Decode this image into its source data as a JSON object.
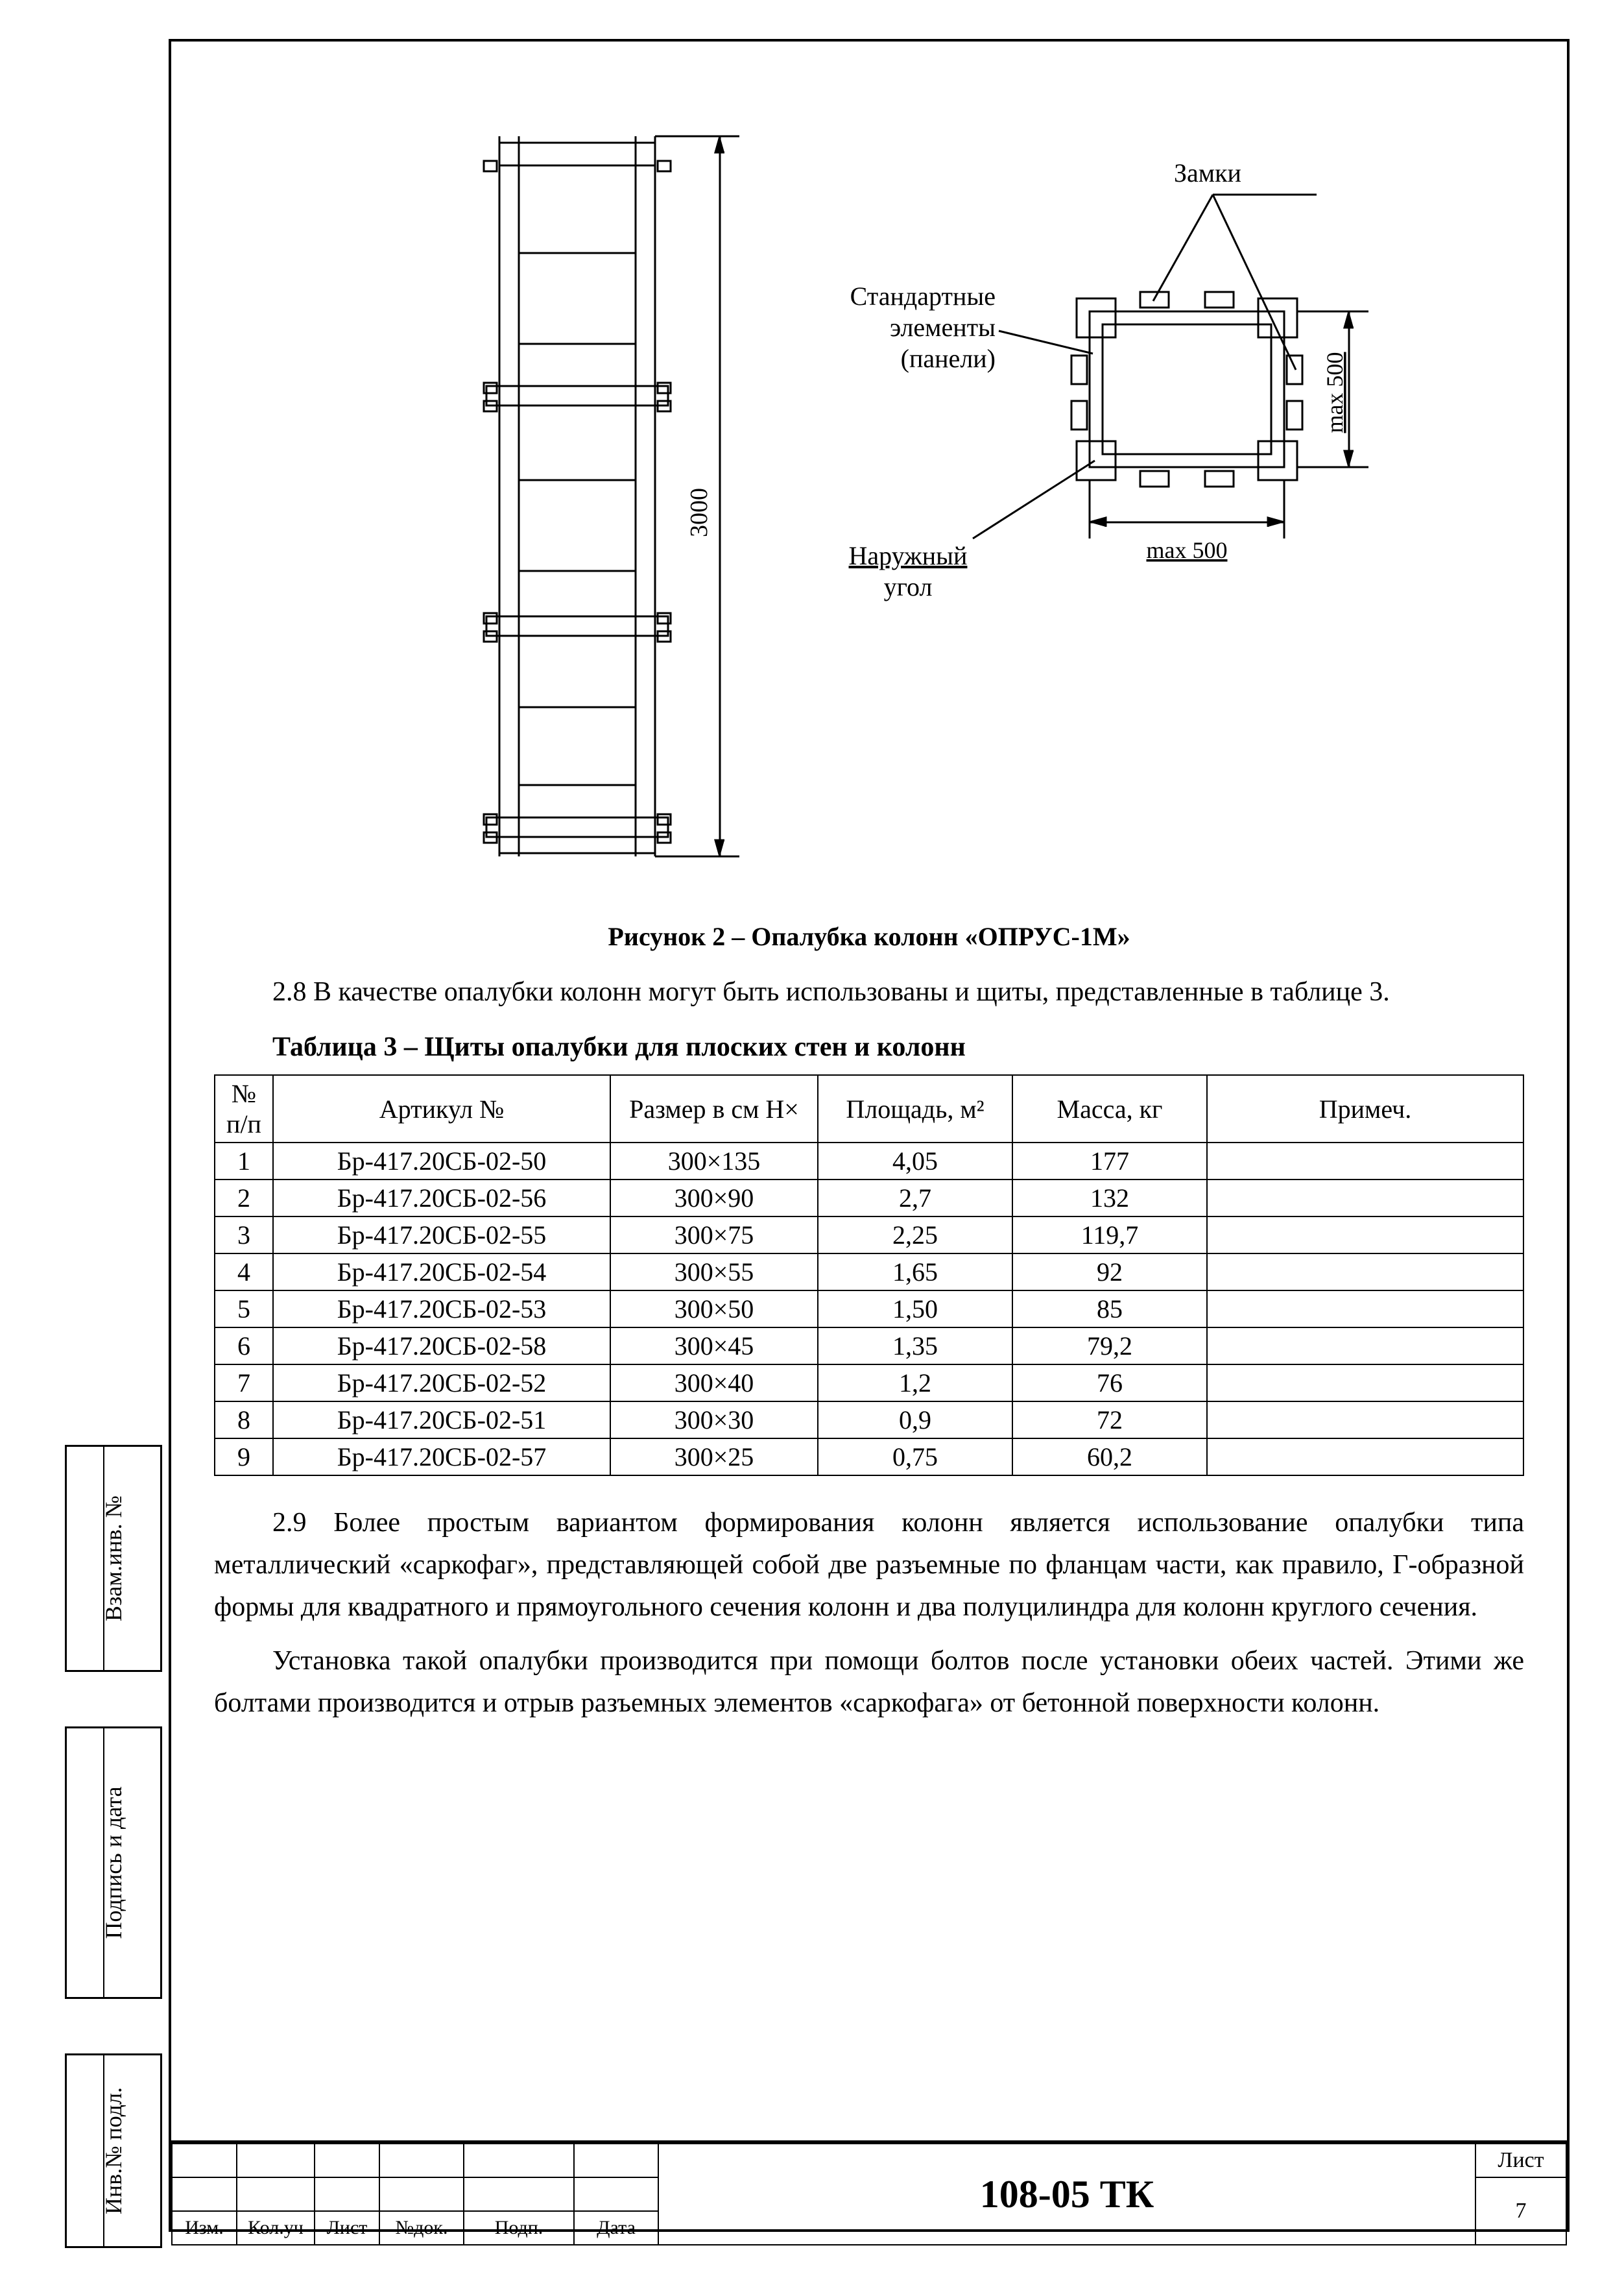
{
  "diagram": {
    "dim_vertical": "3000",
    "label_locks": "Замки",
    "label_panels_l1": "Стандартные",
    "label_panels_l2": "элементы",
    "label_panels_l3": "(панели)",
    "label_corner_l1": "Наружный",
    "label_corner_l2": "угол",
    "dim_max_h": "max 500",
    "dim_max_v": "max 500",
    "stroke": "#000000",
    "bg": "#ffffff"
  },
  "fig_caption": "Рисунок 2 – Опалубка колонн «ОПРУС-1М»",
  "para_2_8": "2.8 В качестве опалубки колонн могут быть использованы и щиты, представленные в таблице 3.",
  "table3": {
    "title": "Таблица 3 – Щиты опалубки для плоских стен и колонн",
    "headers": {
      "id": "№ п/п",
      "art": "Артикул №",
      "size": "Размер в см Н×",
      "area": "Площадь, м²",
      "mass": "Масса, кг",
      "note": "Примеч."
    },
    "rows": [
      {
        "id": "1",
        "art": "Бр-417.20СБ-02-50",
        "size": "300×135",
        "area": "4,05",
        "mass": "177",
        "note": ""
      },
      {
        "id": "2",
        "art": "Бр-417.20СБ-02-56",
        "size": "300×90",
        "area": "2,7",
        "mass": "132",
        "note": ""
      },
      {
        "id": "3",
        "art": "Бр-417.20СБ-02-55",
        "size": "300×75",
        "area": "2,25",
        "mass": "119,7",
        "note": ""
      },
      {
        "id": "4",
        "art": "Бр-417.20СБ-02-54",
        "size": "300×55",
        "area": "1,65",
        "mass": "92",
        "note": ""
      },
      {
        "id": "5",
        "art": "Бр-417.20СБ-02-53",
        "size": "300×50",
        "area": "1,50",
        "mass": "85",
        "note": ""
      },
      {
        "id": "6",
        "art": "Бр-417.20СБ-02-58",
        "size": "300×45",
        "area": "1,35",
        "mass": "79,2",
        "note": ""
      },
      {
        "id": "7",
        "art": "Бр-417.20СБ-02-52",
        "size": "300×40",
        "area": "1,2",
        "mass": "76",
        "note": ""
      },
      {
        "id": "8",
        "art": "Бр-417.20СБ-02-51",
        "size": "300×30",
        "area": "0,9",
        "mass": "72",
        "note": ""
      },
      {
        "id": "9",
        "art": "Бр-417.20СБ-02-57",
        "size": "300×25",
        "area": "0,75",
        "mass": "60,2",
        "note": ""
      }
    ]
  },
  "para_2_9a": "2.9 Более простым вариантом формирования колонн является использование опалубки типа металлический «саркофаг», представляющей собой две разъемные по фланцам части, как правило, Г-образной формы для квадратного и прямоугольного сечения колонн и два полуцилиндра для колонн круглого сечения.",
  "para_2_9b": "Установка такой опалубки производится при помощи болтов после установки обеих частей. Этими же болтами производится и отрыв разъемных элементов «саркофага» от бетонной поверхности колонн.",
  "title_block": {
    "col_labels": [
      "Изм.",
      "Кол.уч",
      "Лист",
      "№док.",
      "Подп.",
      "Дата"
    ],
    "doc_code": "108-05 ТК",
    "list_label": "Лист",
    "page_no": "7"
  },
  "side": {
    "inv_podl": "Инв.№ подл.",
    "podpis": "Подпись и дата",
    "vzam": "Взам.инв. №"
  }
}
